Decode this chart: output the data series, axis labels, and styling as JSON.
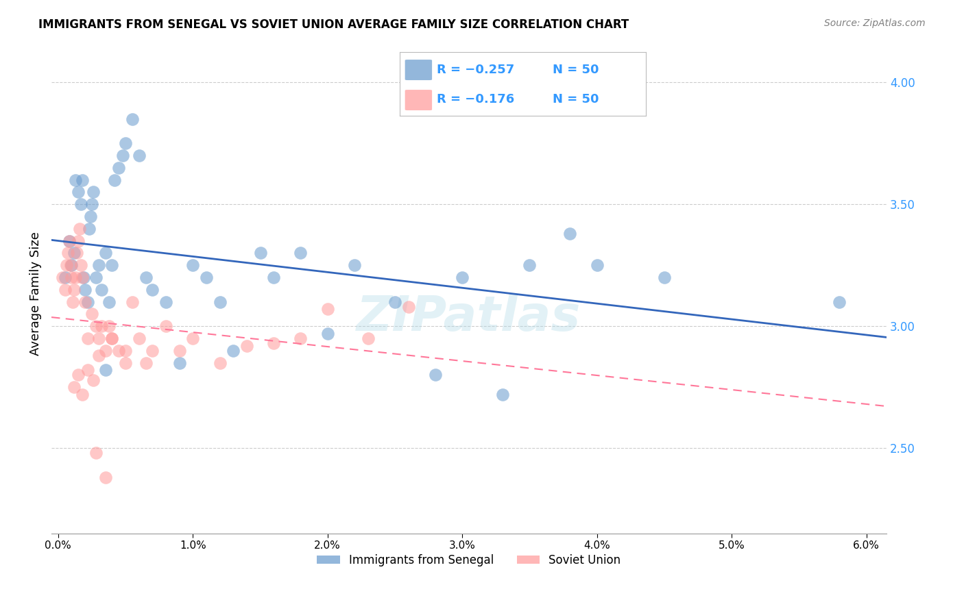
{
  "title": "IMMIGRANTS FROM SENEGAL VS SOVIET UNION AVERAGE FAMILY SIZE CORRELATION CHART",
  "source": "Source: ZipAtlas.com",
  "ylabel": "Average Family Size",
  "xlabel_ticks": [
    "0.0%",
    "1.0%",
    "2.0%",
    "3.0%",
    "4.0%",
    "5.0%",
    "6.0%"
  ],
  "xlabel_vals": [
    0.0,
    1.0,
    2.0,
    3.0,
    4.0,
    5.0,
    6.0
  ],
  "yticks": [
    2.5,
    3.0,
    3.5,
    4.0
  ],
  "ymin": 2.15,
  "ymax": 4.12,
  "xmin": -0.05,
  "xmax": 6.15,
  "watermark": "ZIPatlas",
  "legend_blue_label": "Immigrants from Senegal",
  "legend_pink_label": "Soviet Union",
  "legend_blue_r": "-0.257",
  "legend_blue_n": "50",
  "legend_pink_r": "-0.176",
  "legend_pink_n": "50",
  "blue_color": "#6699CC",
  "pink_color": "#FF9999",
  "blue_line_color": "#3366BB",
  "pink_line_color": "#FF7799",
  "right_tick_color": "#3399FF",
  "senegal_x": [
    0.05,
    0.08,
    0.1,
    0.12,
    0.13,
    0.15,
    0.17,
    0.18,
    0.19,
    0.2,
    0.22,
    0.23,
    0.24,
    0.25,
    0.26,
    0.28,
    0.3,
    0.32,
    0.35,
    0.38,
    0.4,
    0.42,
    0.45,
    0.48,
    0.5,
    0.55,
    0.6,
    0.65,
    0.7,
    0.8,
    0.9,
    1.0,
    1.1,
    1.2,
    1.3,
    1.5,
    1.6,
    1.8,
    2.0,
    2.2,
    2.5,
    2.8,
    3.0,
    3.3,
    3.5,
    3.8,
    4.0,
    4.5,
    5.8,
    0.35
  ],
  "senegal_y": [
    3.2,
    3.35,
    3.25,
    3.3,
    3.6,
    3.55,
    3.5,
    3.6,
    3.2,
    3.15,
    3.1,
    3.4,
    3.45,
    3.5,
    3.55,
    3.2,
    3.25,
    3.15,
    3.3,
    3.1,
    3.25,
    3.6,
    3.65,
    3.7,
    3.75,
    3.85,
    3.7,
    3.2,
    3.15,
    3.1,
    2.85,
    3.25,
    3.2,
    3.1,
    2.9,
    3.3,
    3.2,
    3.3,
    2.97,
    3.25,
    3.1,
    2.8,
    3.2,
    2.72,
    3.25,
    3.38,
    3.25,
    3.2,
    3.1,
    2.82
  ],
  "soviet_x": [
    0.03,
    0.05,
    0.06,
    0.07,
    0.08,
    0.09,
    0.1,
    0.11,
    0.12,
    0.13,
    0.14,
    0.15,
    0.16,
    0.17,
    0.18,
    0.2,
    0.22,
    0.25,
    0.28,
    0.3,
    0.32,
    0.35,
    0.38,
    0.4,
    0.45,
    0.5,
    0.55,
    0.6,
    0.65,
    0.7,
    0.8,
    0.9,
    1.0,
    1.2,
    1.4,
    1.6,
    1.8,
    2.0,
    2.3,
    2.6,
    0.12,
    0.15,
    0.18,
    0.22,
    0.26,
    0.3,
    0.4,
    0.5,
    0.28,
    0.35
  ],
  "soviet_y": [
    3.2,
    3.15,
    3.25,
    3.3,
    3.35,
    3.25,
    3.2,
    3.1,
    3.15,
    3.2,
    3.3,
    3.35,
    3.4,
    3.25,
    3.2,
    3.1,
    2.95,
    3.05,
    3.0,
    2.95,
    3.0,
    2.9,
    3.0,
    2.95,
    2.9,
    2.85,
    3.1,
    2.95,
    2.85,
    2.9,
    3.0,
    2.9,
    2.95,
    2.85,
    2.92,
    2.93,
    2.95,
    3.07,
    2.95,
    3.08,
    2.75,
    2.8,
    2.72,
    2.82,
    2.78,
    2.88,
    2.95,
    2.9,
    2.48,
    2.38
  ]
}
